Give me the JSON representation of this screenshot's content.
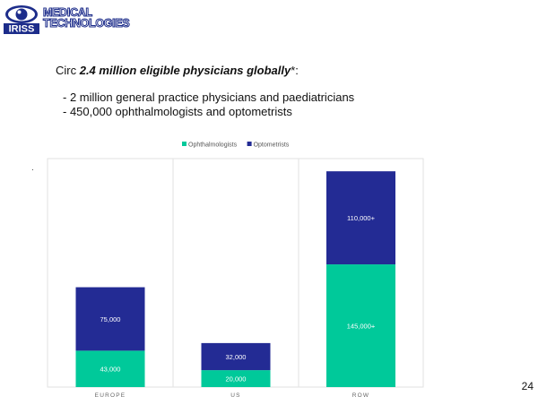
{
  "logo": {
    "line1": "MEDICAL",
    "line2": "TECHNOLOGIES",
    "mark_text": "IRISS",
    "colors": {
      "blue": "#1c2c8a",
      "white": "#ffffff"
    }
  },
  "intro": {
    "prefix": "Circ ",
    "bold": "2.4 million eligible physicians globally",
    "suffix": "*:"
  },
  "bullets": [
    "- 2 million general practice physicians and paediatricians",
    "- 450,000 ophthalmologists  and optometrists"
  ],
  "stray_mark": ".",
  "page_number": "24",
  "chart_data": {
    "type": "bar",
    "stacked": true,
    "categories": [
      "EUROPE",
      "US",
      "ROW"
    ],
    "series": [
      {
        "name": "Ophthalmologists",
        "values": [
          43000,
          20000,
          145000
        ],
        "labels": [
          "43,000",
          "20,000",
          "145,000+"
        ],
        "color": "#00c99a"
      },
      {
        "name": "Optometrists",
        "values": [
          75000,
          32000,
          110000
        ],
        "labels": [
          "75,000",
          "32,000",
          "110,000+"
        ],
        "color": "#232b94"
      }
    ],
    "ylim": [
      0,
      270000
    ],
    "grid": false,
    "legend": "top-center",
    "title": "",
    "xlabel": "",
    "ylabel": ""
  }
}
